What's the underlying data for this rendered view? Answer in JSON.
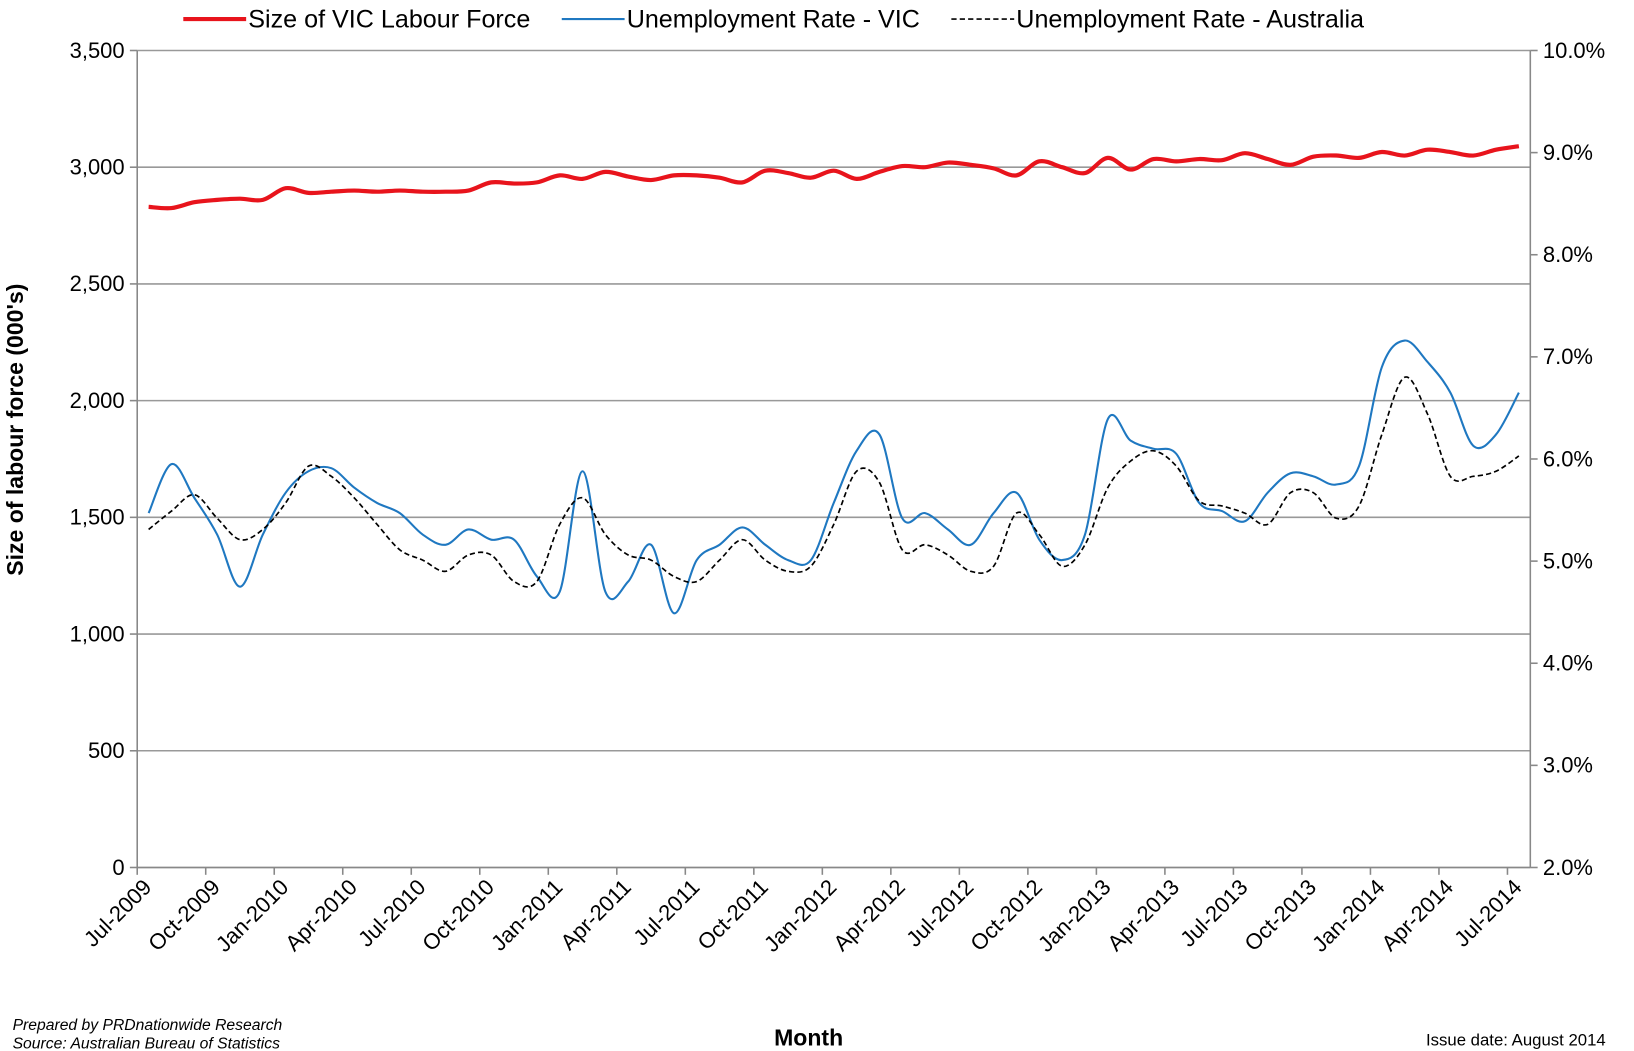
{
  "chart_data": {
    "type": "line",
    "ylabel": "Size of labour force (000's)",
    "xlabel": "Month",
    "annotations": [
      "Prepared by PRDnationwide Research",
      "Source:  Australian Bureau of Statistics",
      "Issue date: August 2014"
    ],
    "legend": "top",
    "grid": true,
    "smooth": true,
    "categories": [
      "Jul-2009",
      null,
      null,
      "Oct-2009",
      null,
      null,
      "Jan-2010",
      null,
      null,
      "Apr-2010",
      null,
      null,
      "Jul-2010",
      null,
      null,
      "Oct-2010",
      null,
      null,
      "Jan-2011",
      null,
      null,
      "Apr-2011",
      null,
      null,
      "Jul-2011",
      null,
      null,
      "Oct-2011",
      null,
      null,
      "Jan-2012",
      null,
      null,
      "Apr-2012",
      null,
      null,
      "Jul-2012",
      null,
      null,
      "Oct-2012",
      null,
      null,
      "Jan-2013",
      null,
      null,
      "Apr-2013",
      null,
      null,
      "Jul-2013",
      null,
      null,
      "Oct-2013",
      null,
      null,
      "Jan-2014",
      null,
      null,
      "Apr-2014",
      null,
      null,
      "Jul-2014"
    ],
    "ylim": [
      0,
      3500
    ],
    "yticks": [
      0,
      500,
      {
        "value": 1000,
        "label": "1,000"
      },
      {
        "value": 1500,
        "label": "1,500"
      },
      {
        "value": 2000,
        "label": "2,000"
      },
      {
        "value": 2500,
        "label": "2,500"
      },
      {
        "value": 3000,
        "label": "3,000"
      },
      {
        "value": 3500,
        "label": "3,500"
      }
    ],
    "y2lim": [
      2,
      10
    ],
    "y2ticks": [
      {
        "value": 2,
        "label": "2.0%"
      },
      {
        "value": 3,
        "label": "3.0%"
      },
      {
        "value": 4,
        "label": "4.0%"
      },
      {
        "value": 5,
        "label": "5.0%"
      },
      {
        "value": 6,
        "label": "6.0%"
      },
      {
        "value": 7,
        "label": "7.0%"
      },
      {
        "value": 8,
        "label": "8.0%"
      },
      {
        "value": 9,
        "label": "9.0%"
      },
      {
        "value": 10,
        "label": "10.0%"
      }
    ],
    "series": [
      {
        "name": "Size of VIC Labour Force",
        "color": "#e8141c",
        "line_style": "solid",
        "width": 4,
        "values": [
          2830,
          2825,
          2850,
          2860,
          2865,
          2860,
          2910,
          2890,
          2895,
          2900,
          2895,
          2900,
          2895,
          2895,
          2900,
          2935,
          2930,
          2935,
          2965,
          2950,
          2980,
          2960,
          2945,
          2965,
          2965,
          2955,
          2935,
          2985,
          2975,
          2955,
          2985,
          2950,
          2980,
          3005,
          3000,
          3020,
          3010,
          2995,
          2965,
          3025,
          3000,
          2975,
          3040,
          2990,
          3035,
          3025,
          3035,
          3030,
          3060,
          3035,
          3010,
          3045,
          3050,
          3040,
          3065,
          3050,
          3075,
          3065,
          3050,
          3075,
          3090
        ]
      },
      {
        "name": "Unemployment Rate - VIC",
        "color": "#1f78c1",
        "line_style": "solid",
        "width": 2,
        "axis": "y2",
        "values": [
          5.47,
          5.95,
          5.62,
          5.26,
          4.75,
          5.26,
          5.67,
          5.88,
          5.91,
          5.72,
          5.57,
          5.47,
          5.26,
          5.16,
          5.31,
          5.21,
          5.21,
          4.85,
          4.7,
          5.88,
          4.7,
          4.8,
          5.16,
          4.49,
          5.01,
          5.16,
          5.33,
          5.16,
          5.01,
          5.01,
          5.57,
          6.08,
          6.24,
          5.42,
          5.47,
          5.31,
          5.16,
          5.47,
          5.67,
          5.21,
          5.01,
          5.26,
          6.39,
          6.18,
          6.1,
          6.05,
          5.57,
          5.49,
          5.39,
          5.67,
          5.86,
          5.83,
          5.75,
          5.93,
          6.9,
          7.16,
          6.95,
          6.65,
          6.13,
          6.24,
          6.65
        ]
      },
      {
        "name": "Unemployment Rate - Australia",
        "color": "#000000",
        "line_style": "dashed",
        "width": 1.6,
        "axis": "y2",
        "values": [
          5.31,
          5.49,
          5.65,
          5.42,
          5.21,
          5.31,
          5.57,
          5.93,
          5.83,
          5.62,
          5.36,
          5.11,
          5.01,
          4.9,
          5.06,
          5.06,
          4.8,
          4.8,
          5.36,
          5.62,
          5.26,
          5.06,
          5.01,
          4.85,
          4.8,
          5.01,
          5.21,
          5.01,
          4.9,
          4.95,
          5.36,
          5.88,
          5.77,
          5.11,
          5.16,
          5.06,
          4.9,
          4.95,
          5.47,
          5.26,
          4.95,
          5.16,
          5.72,
          5.98,
          6.08,
          5.93,
          5.59,
          5.54,
          5.47,
          5.36,
          5.67,
          5.67,
          5.42,
          5.54,
          6.24,
          6.8,
          6.44,
          5.83,
          5.83,
          5.88,
          6.03
        ]
      }
    ]
  }
}
